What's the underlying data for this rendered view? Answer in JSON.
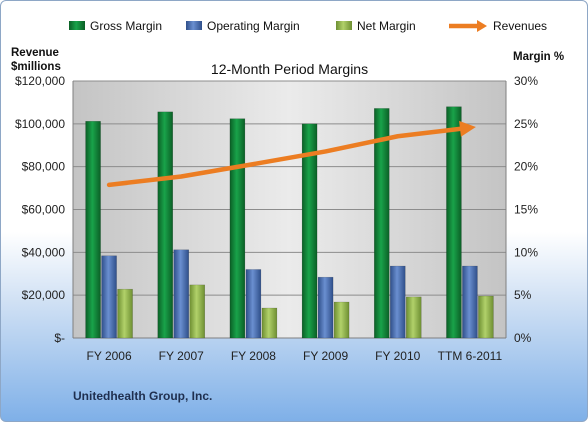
{
  "chart_data": {
    "type": "bar",
    "title": "12-Month Period Margins",
    "categories": [
      "FY 2006",
      "FY 2007",
      "FY 2008",
      "FY 2009",
      "FY 2010",
      "TTM 6-2011"
    ],
    "series": [
      {
        "name": "Gross Margin",
        "axis": "right",
        "color": "#0f7a32",
        "values": [
          25.3,
          26.4,
          25.6,
          25.0,
          26.8,
          27.0
        ]
      },
      {
        "name": "Operating Margin",
        "axis": "right",
        "color": "#4a6fb0",
        "values": [
          9.6,
          10.3,
          8.0,
          7.1,
          8.4,
          8.4
        ]
      },
      {
        "name": "Net Margin",
        "axis": "right",
        "color": "#8bb04a",
        "values": [
          5.7,
          6.2,
          3.5,
          4.2,
          4.8,
          4.9
        ]
      },
      {
        "name": "Revenues",
        "axis": "left",
        "type": "line",
        "color": "#ec7d22",
        "values": [
          71500,
          75400,
          81200,
          87100,
          94200,
          98200
        ]
      }
    ],
    "ylabel_left": "Revenue $millions",
    "ylabel_right": "Margin %",
    "ylim_left": [
      0,
      120000
    ],
    "ylim_right": [
      0,
      30
    ],
    "yticks_left": [
      "$-",
      "$20,000",
      "$40,000",
      "$60,000",
      "$80,000",
      "$100,000",
      "$120,000"
    ],
    "yticks_right": [
      "0%",
      "5%",
      "10%",
      "15%",
      "20%",
      "25%",
      "30%"
    ],
    "legend_position": "top",
    "grid": true
  },
  "company": "Unitedhealth Group, Inc."
}
